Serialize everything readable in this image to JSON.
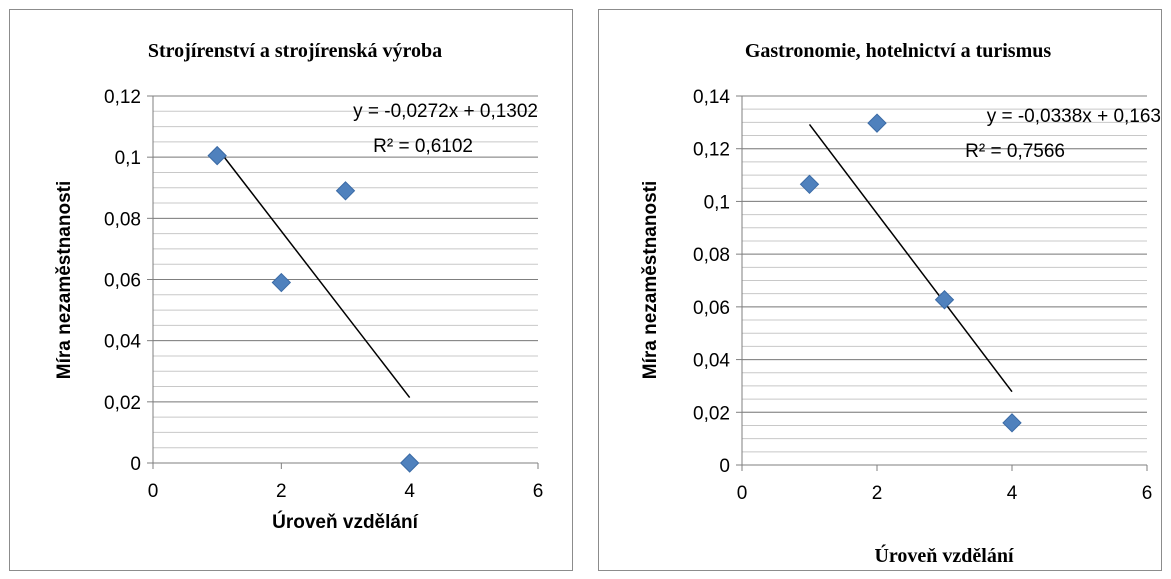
{
  "chart_data": [
    {
      "type": "scatter",
      "title": "Strojírenství a strojírenská výroba",
      "xlabel": "Úroveň vzdělání",
      "ylabel": "Míra nezaměstnanosti",
      "xlim": [
        0,
        6
      ],
      "ylim": [
        0,
        0.12
      ],
      "xticks": [
        0,
        2,
        4,
        6
      ],
      "xtick_labels": [
        "0",
        "2",
        "4",
        "6"
      ],
      "yticks": [
        0,
        0.02,
        0.04,
        0.06,
        0.08,
        0.1,
        0.12
      ],
      "ytick_labels": [
        "0",
        "0,02",
        "0,04",
        "0,06",
        "0,08",
        "0,1",
        "0,12"
      ],
      "grid": "horizontal",
      "marker_color": "#4f81bd",
      "points": [
        {
          "x": 1,
          "y": 0.1005
        },
        {
          "x": 2,
          "y": 0.059
        },
        {
          "x": 3,
          "y": 0.089
        },
        {
          "x": 4,
          "y": 0.0
        }
      ],
      "trendline": {
        "slope": -0.0272,
        "intercept": 0.1302,
        "x_range": [
          1,
          4
        ]
      },
      "equation_text": "y = -0,0272x + 0,1302",
      "r2_text": "R² = 0,6102"
    },
    {
      "type": "scatter",
      "title": "Gastronomie, hotelnictví a turismus",
      "xlabel": "Úroveň vzdělání",
      "ylabel": "Míra nezaměstnanosti",
      "xlim": [
        0,
        6
      ],
      "ylim": [
        0,
        0.14
      ],
      "xticks": [
        0,
        2,
        4,
        6
      ],
      "xtick_labels": [
        "0",
        "2",
        "4",
        "6"
      ],
      "yticks": [
        0,
        0.02,
        0.04,
        0.06,
        0.08,
        0.1,
        0.12,
        0.14
      ],
      "ytick_labels": [
        "0",
        "0,02",
        "0,04",
        "0,06",
        "0,08",
        "0,1",
        "0,12",
        "0,14"
      ],
      "grid": "horizontal",
      "marker_color": "#4f81bd",
      "points": [
        {
          "x": 1,
          "y": 0.1065
        },
        {
          "x": 2,
          "y": 0.1297
        },
        {
          "x": 3,
          "y": 0.0627
        },
        {
          "x": 4,
          "y": 0.016
        }
      ],
      "trendline": {
        "slope": -0.0338,
        "intercept": 0.163,
        "x_range": [
          1,
          4
        ]
      },
      "equation_text": "y = -0,0338x + 0,163",
      "r2_text": "R² = 0,7566"
    }
  ]
}
